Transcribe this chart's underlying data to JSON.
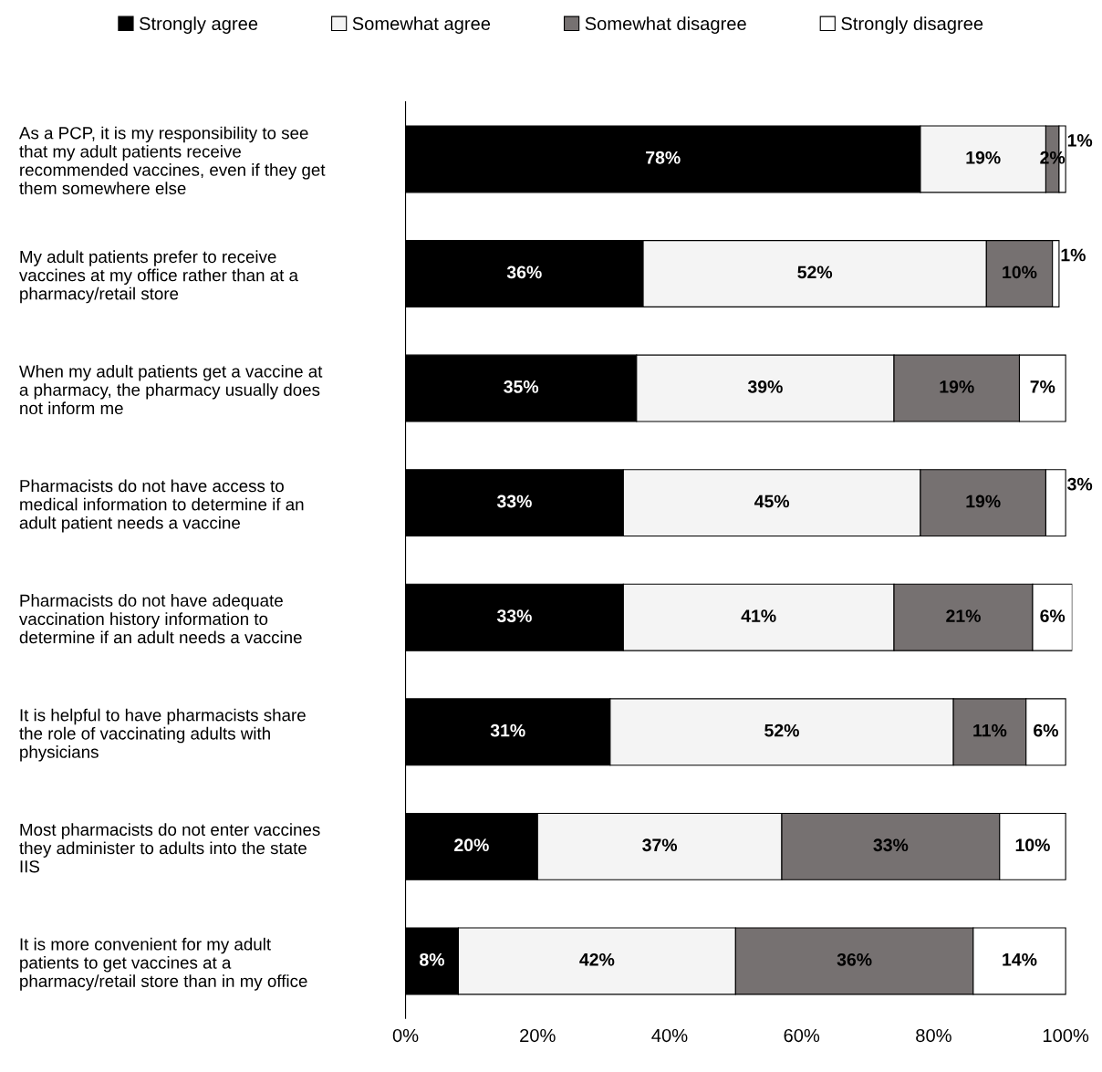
{
  "chart_data": {
    "type": "bar",
    "orientation": "horizontal",
    "stacked": true,
    "legend": "top",
    "categories": [
      "As a PCP, it is my responsibility to see that my adult patients receive recommended vaccines, even if they get them somewhere else",
      "My adult patients prefer to receive vaccines at my office rather than at a pharmacy/retail store",
      "When my adult patients get a vaccine at a pharmacy, the pharmacy usually does not inform me",
      "Pharmacists do not have access to medical information to determine if an adult patient needs a vaccine",
      "Pharmacists do not have adequate vaccination history information to determine if an adult needs a vaccine",
      "It is helpful to have pharmacists share the role of vaccinating adults with physicians",
      "Most pharmacists do not enter vaccines they administer to adults into the state IIS",
      "It is more convenient for my adult patients to get vaccines at a pharmacy/retail store than in my office"
    ],
    "series": [
      {
        "name": "Strongly agree",
        "color": "#000000",
        "values": [
          78,
          36,
          35,
          33,
          33,
          31,
          20,
          8
        ],
        "value_labels": [
          "78%",
          "36%",
          "35%",
          "33%",
          "33%",
          "31%",
          "20%",
          "8%"
        ]
      },
      {
        "name": "Somewhat agree",
        "color": "#f4f4f4",
        "values": [
          19,
          52,
          39,
          45,
          41,
          52,
          37,
          42
        ],
        "value_labels": [
          "19%",
          "52%",
          "39%",
          "45%",
          "41%",
          "52%",
          "37%",
          "42%"
        ]
      },
      {
        "name": "Somewhat disagree",
        "color": "#767171",
        "values": [
          2,
          10,
          19,
          19,
          21,
          11,
          33,
          36
        ],
        "value_labels": [
          "2%",
          "10%",
          "19%",
          "19%",
          "21%",
          "11%",
          "33%",
          "36%"
        ]
      },
      {
        "name": "Strongly disagree",
        "color": "#ffffff",
        "values": [
          1,
          1,
          7,
          3,
          6,
          6,
          10,
          14
        ],
        "value_labels": [
          "1%",
          "1%",
          "7%",
          "3%",
          "6%",
          "6%",
          "10%",
          "14%"
        ]
      }
    ],
    "xlim": [
      0,
      101
    ],
    "xticks": [
      {
        "value": 0,
        "label": "0%"
      },
      {
        "value": 20,
        "label": "20%"
      },
      {
        "value": 40,
        "label": "40%"
      },
      {
        "value": 60,
        "label": "60%"
      },
      {
        "value": 80,
        "label": "80%"
      },
      {
        "value": 100,
        "label": "100%"
      }
    ],
    "grid": false
  }
}
